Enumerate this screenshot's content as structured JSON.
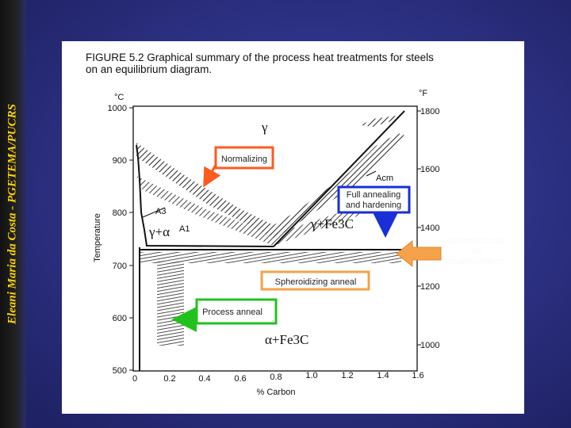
{
  "side_title": "Eleani Maria da Costa - PGETEMA/PUCRS",
  "figure": {
    "title_line1": "FIGURE 5.2   Graphical summary of the process heat treatments for steels",
    "title_line2": "on an equilibrium diagram.",
    "unit_c": "°C",
    "unit_f": "°F",
    "c_ticks": [
      "1000",
      "900",
      "800",
      "700",
      "600",
      "500"
    ],
    "f_ticks": [
      "1800",
      "1600",
      "1400",
      "1200",
      "1000"
    ],
    "x_ticks": [
      "0",
      "0.2",
      "0.4",
      "0.6",
      "0.8",
      "1.0",
      "1.2",
      "1.4",
      "1.6"
    ],
    "x_label": "% Carbon",
    "y_label": "Temperature",
    "line_a3": "A3",
    "line_a1": "A1",
    "line_acm": "Acm"
  },
  "phases": {
    "gamma": "γ",
    "gamma_alpha": "γ+α",
    "gamma_fe3c": "γ+Fe3C",
    "alpha_fe3c": "α+Fe3C"
  },
  "boxes": {
    "normalizing": "Normalizing",
    "full_annealing_1": "Full annealing",
    "full_annealing_2": "and hardening",
    "spheroidizing": "Spheroidizing anneal",
    "process_anneal": "Process anneal"
  },
  "callout": {
    "line1": "Esferoidização",
    "line2": "ou",
    "line3": "coalescimento"
  },
  "colors": {
    "normalizing": "#ff5a1f",
    "full_annealing": "#1a2fd6",
    "spheroidizing": "#f5a24a",
    "process_anneal": "#22c21e",
    "side_title": "#ffd400"
  }
}
